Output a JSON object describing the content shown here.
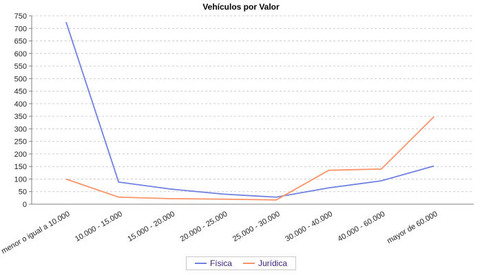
{
  "palette": {
    "fisica_line": "#7080e0",
    "juridica_line": "#fa9468",
    "grid": "#cccccc",
    "axis": "#808080",
    "tick_text": "#222222",
    "legend_text": "#3a1f7a",
    "background": "#ffffff"
  },
  "chart_data": {
    "type": "line",
    "title": "Vehículos por Valor",
    "categories": [
      "menor o igual a 10.000",
      "10.000 - 15.000",
      "15.000 - 20.000",
      "20.000 - 25.000",
      "25.000 - 30.000",
      "30.000 - 40.000",
      "40.000 - 60.000",
      "mayor de 60.000"
    ],
    "series": [
      {
        "name": "Física",
        "color": "#7080e0",
        "values": [
          725,
          88,
          60,
          40,
          28,
          65,
          93,
          152
        ]
      },
      {
        "name": "Jurídica",
        "color": "#fa9468",
        "values": [
          100,
          28,
          22,
          20,
          17,
          135,
          140,
          348
        ]
      }
    ],
    "xlabel": "",
    "ylabel": "",
    "ylim": [
      0,
      750
    ],
    "ytick_step": 50,
    "grid": true,
    "grid_style": "dashed-horizontal",
    "legend_position": "bottom",
    "x_label_rotation_deg": -30
  }
}
